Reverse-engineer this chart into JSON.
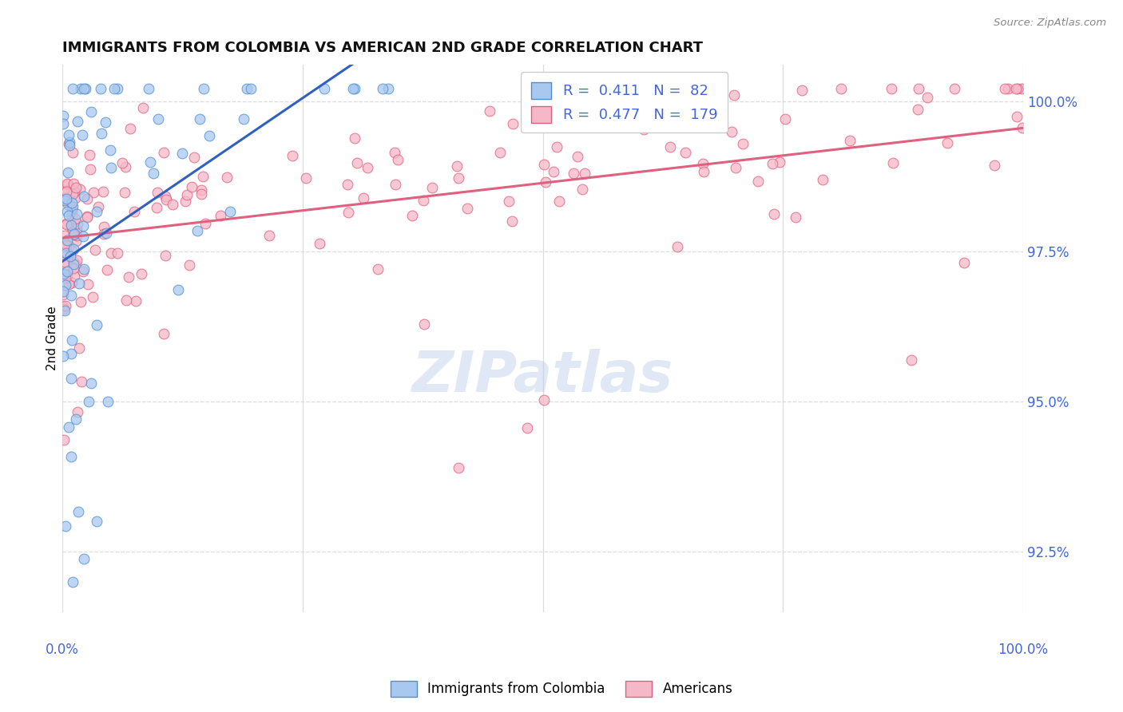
{
  "title": "IMMIGRANTS FROM COLOMBIA VS AMERICAN 2ND GRADE CORRELATION CHART",
  "source": "Source: ZipAtlas.com",
  "ylabel": "2nd Grade",
  "colombia_R": 0.411,
  "colombia_N": 82,
  "american_R": 0.477,
  "american_N": 179,
  "colombia_color": "#A8C8F0",
  "american_color": "#F5B8C8",
  "colombia_edge_color": "#5090D0",
  "american_edge_color": "#E06080",
  "colombia_line_color": "#3060C0",
  "american_line_color": "#E06080",
  "watermark_text": "ZIPatlas",
  "legend_label_colombia": "Immigrants from Colombia",
  "legend_label_american": "Americans",
  "xlim": [
    0.0,
    1.0
  ],
  "ylim": [
    0.915,
    1.006
  ],
  "ytick_vals": [
    0.925,
    0.95,
    0.975,
    1.0
  ],
  "ytick_labels": [
    "92.5%",
    "95.0%",
    "97.5%",
    "100.0%"
  ],
  "right_label_color": "#4466DD",
  "grid_color": "#DDDDDD",
  "title_color": "#111111",
  "source_color": "#888888"
}
